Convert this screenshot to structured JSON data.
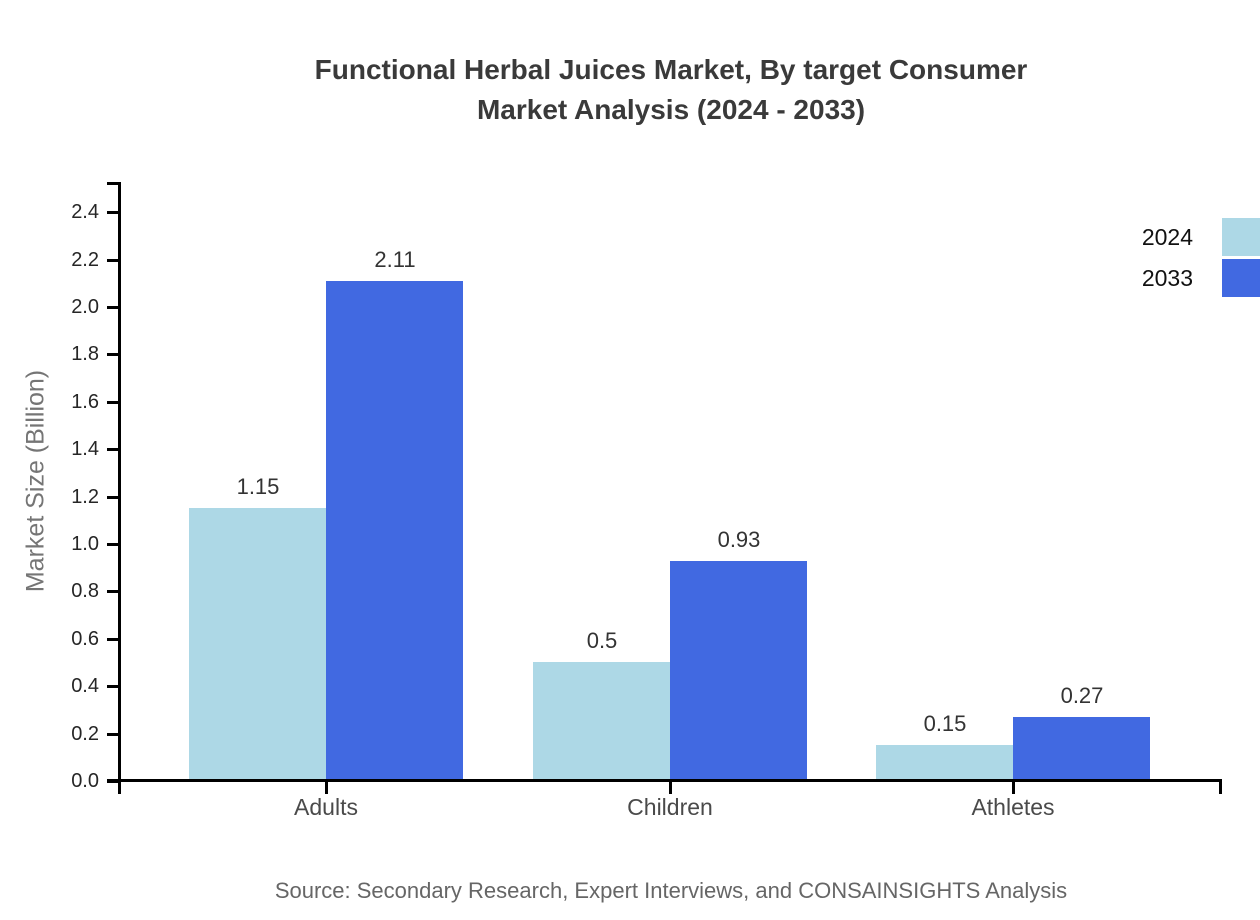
{
  "title": {
    "line1": "Functional Herbal Juices Market, By target Consumer",
    "line2": "Market Analysis (2024 - 2033)"
  },
  "source": "Source: Secondary Research, Expert Interviews, and CONSAINSIGHTS Analysis",
  "chart_data": {
    "type": "bar",
    "title": "Functional Herbal Juices Market, By target Consumer Market Analysis (2024 - 2033)",
    "categories": [
      "Adults",
      "Children",
      "Athletes"
    ],
    "series": [
      {
        "name": "2024",
        "color": "#ADD8E6",
        "values": [
          1.15,
          0.5,
          0.15
        ],
        "labels": [
          "1.15",
          "0.5",
          "0.15"
        ]
      },
      {
        "name": "2033",
        "color": "#4169E1",
        "values": [
          2.11,
          0.93,
          0.27
        ],
        "labels": [
          "2.11",
          "0.93",
          "0.27"
        ]
      }
    ],
    "xlabel": "",
    "ylabel": "Market Size (Billion)",
    "ylim": [
      0,
      2.53
    ],
    "yticks": [
      0.0,
      0.2,
      0.4,
      0.6,
      0.8,
      1.0,
      1.2,
      1.4,
      1.6,
      1.8,
      2.0,
      2.2,
      2.4
    ],
    "ytick_labels": [
      "0.0",
      "0.2",
      "0.4",
      "0.6",
      "0.8",
      "1.0",
      "1.2",
      "1.4",
      "1.6",
      "1.8",
      "2.0",
      "2.2",
      "2.4"
    ],
    "grid": false,
    "legend_position": "top-right-edge",
    "value_labels_shown": true
  },
  "colors": {
    "axis": "#000000",
    "title_text": "#3a3a3a",
    "tick_text": "#262626",
    "category_text": "#4a4a4a",
    "value_text": "#333333",
    "ylabel_text": "#757575",
    "source_text": "#666666",
    "background": "#ffffff"
  }
}
